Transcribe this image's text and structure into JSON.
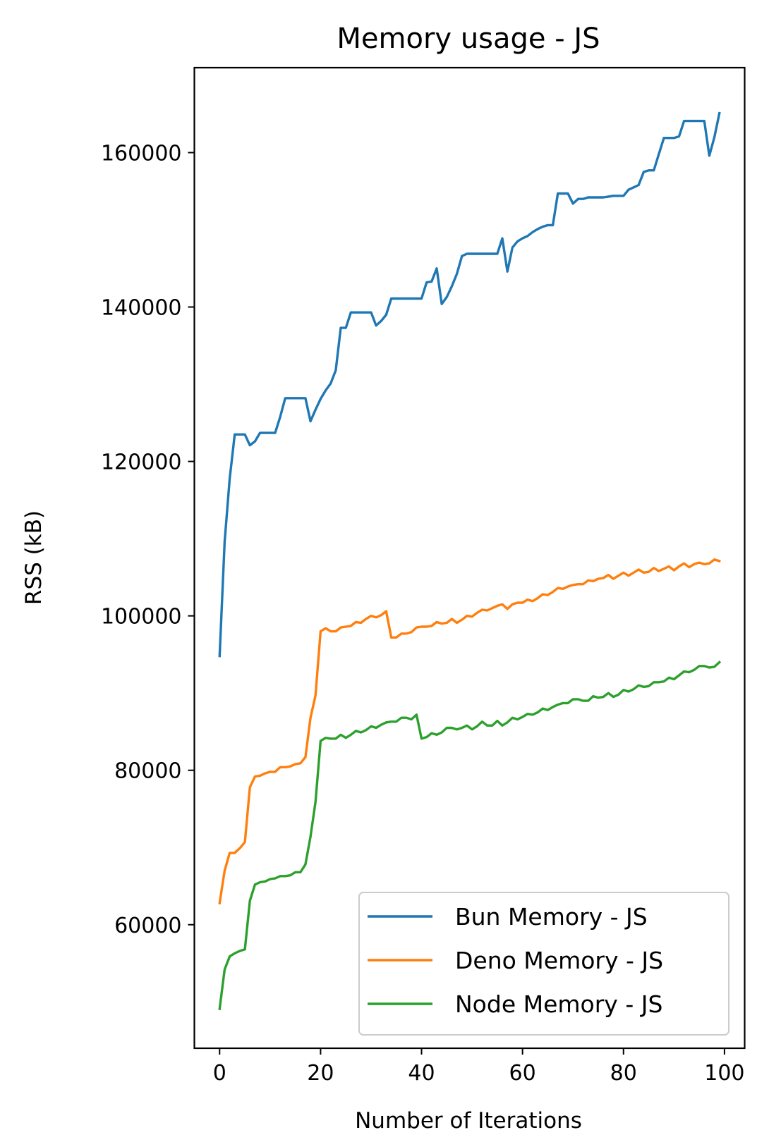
{
  "chart_data": {
    "type": "line",
    "title": "Memory usage - JS",
    "xlabel": "Number of Iterations",
    "ylabel": "RSS (kB)",
    "xlim": [
      -5,
      104
    ],
    "ylim": [
      44000,
      171000
    ],
    "xticks": [
      0,
      20,
      40,
      60,
      80,
      100
    ],
    "yticks": [
      60000,
      80000,
      100000,
      120000,
      140000,
      160000
    ],
    "grid": false,
    "legend_position": "lower right",
    "series": [
      {
        "name": "Bun Memory - JS",
        "color": "#1f77b4",
        "x": [
          0,
          1,
          2,
          3,
          4,
          5,
          6,
          7,
          8,
          9,
          10,
          11,
          12,
          13,
          14,
          15,
          16,
          17,
          18,
          19,
          20,
          21,
          22,
          23,
          24,
          25,
          26,
          27,
          28,
          29,
          30,
          31,
          32,
          33,
          34,
          35,
          36,
          37,
          38,
          39,
          40,
          41,
          42,
          43,
          44,
          45,
          46,
          47,
          48,
          49,
          50,
          51,
          52,
          53,
          54,
          55,
          56,
          57,
          58,
          59,
          60,
          61,
          62,
          63,
          64,
          65,
          66,
          67,
          68,
          69,
          70,
          71,
          72,
          73,
          74,
          75,
          76,
          77,
          78,
          79,
          80,
          81,
          82,
          83,
          84,
          85,
          86,
          87,
          88,
          89,
          90,
          91,
          92,
          93,
          94,
          95,
          96,
          97,
          98,
          99
        ],
        "values": [
          94800,
          109600,
          117800,
          123500,
          123500,
          123500,
          122100,
          122600,
          123700,
          123700,
          123700,
          123700,
          125800,
          128200,
          128200,
          128200,
          128200,
          128200,
          125200,
          126700,
          128100,
          129200,
          130100,
          131800,
          137300,
          137300,
          139300,
          139300,
          139300,
          139300,
          139300,
          137600,
          138200,
          139000,
          141100,
          141100,
          141100,
          141100,
          141100,
          141100,
          141100,
          143200,
          143300,
          145000,
          140400,
          141300,
          142700,
          144300,
          146600,
          146900,
          146900,
          146900,
          146900,
          146900,
          146900,
          146900,
          148900,
          144600,
          147700,
          148500,
          148900,
          149200,
          149700,
          150100,
          150400,
          150600,
          150600,
          154700,
          154700,
          154700,
          153400,
          154000,
          154000,
          154200,
          154200,
          154200,
          154200,
          154300,
          154400,
          154400,
          154400,
          155200,
          155500,
          155800,
          157500,
          157700,
          157700,
          159800,
          161900,
          161900,
          161900,
          162100,
          164100,
          164100,
          164100,
          164100,
          164100,
          159600,
          162000,
          165100
        ]
      },
      {
        "name": "Deno Memory - JS",
        "color": "#ff7f0e",
        "x": [
          0,
          1,
          2,
          3,
          4,
          5,
          6,
          7,
          8,
          9,
          10,
          11,
          12,
          13,
          14,
          15,
          16,
          17,
          18,
          19,
          20,
          21,
          22,
          23,
          24,
          25,
          26,
          27,
          28,
          29,
          30,
          31,
          32,
          33,
          34,
          35,
          36,
          37,
          38,
          39,
          40,
          41,
          42,
          43,
          44,
          45,
          46,
          47,
          48,
          49,
          50,
          51,
          52,
          53,
          54,
          55,
          56,
          57,
          58,
          59,
          60,
          61,
          62,
          63,
          64,
          65,
          66,
          67,
          68,
          69,
          70,
          71,
          72,
          73,
          74,
          75,
          76,
          77,
          78,
          79,
          80,
          81,
          82,
          83,
          84,
          85,
          86,
          87,
          88,
          89,
          90,
          91,
          92,
          93,
          94,
          95,
          96,
          97,
          98,
          99
        ],
        "values": [
          62800,
          67000,
          69300,
          69300,
          69900,
          70700,
          77800,
          79200,
          79300,
          79600,
          79800,
          79800,
          80400,
          80400,
          80500,
          80800,
          80900,
          81700,
          86800,
          89700,
          98000,
          98400,
          98000,
          98000,
          98500,
          98600,
          98700,
          99200,
          99100,
          99600,
          100000,
          99800,
          100100,
          100600,
          97200,
          97200,
          97700,
          97700,
          97900,
          98500,
          98600,
          98600,
          98700,
          99200,
          99000,
          99100,
          99600,
          99100,
          99500,
          100000,
          99900,
          100400,
          100800,
          100700,
          101000,
          101300,
          101500,
          100900,
          101500,
          101700,
          101700,
          102100,
          101900,
          102300,
          102800,
          102700,
          103100,
          103600,
          103500,
          103800,
          104000,
          104100,
          104100,
          104600,
          104500,
          104800,
          104900,
          105300,
          104800,
          105200,
          105600,
          105200,
          105600,
          106000,
          105600,
          105700,
          106200,
          105800,
          106100,
          106400,
          105900,
          106400,
          106800,
          106300,
          106700,
          106900,
          106700,
          106800,
          107300,
          107100
        ]
      },
      {
        "name": "Node Memory - JS",
        "color": "#2ca02c",
        "x": [
          0,
          1,
          2,
          3,
          4,
          5,
          6,
          7,
          8,
          9,
          10,
          11,
          12,
          13,
          14,
          15,
          16,
          17,
          18,
          19,
          20,
          21,
          22,
          23,
          24,
          25,
          26,
          27,
          28,
          29,
          30,
          31,
          32,
          33,
          34,
          35,
          36,
          37,
          38,
          39,
          40,
          41,
          42,
          43,
          44,
          45,
          46,
          47,
          48,
          49,
          50,
          51,
          52,
          53,
          54,
          55,
          56,
          57,
          58,
          59,
          60,
          61,
          62,
          63,
          64,
          65,
          66,
          67,
          68,
          69,
          70,
          71,
          72,
          73,
          74,
          75,
          76,
          77,
          78,
          79,
          80,
          81,
          82,
          83,
          84,
          85,
          86,
          87,
          88,
          89,
          90,
          91,
          92,
          93,
          94,
          95,
          96,
          97,
          98,
          99
        ],
        "values": [
          49100,
          54200,
          55900,
          56300,
          56600,
          56800,
          63100,
          65200,
          65500,
          65600,
          65900,
          66000,
          66300,
          66300,
          66400,
          66800,
          66800,
          67800,
          71400,
          75900,
          83800,
          84200,
          84100,
          84100,
          84600,
          84200,
          84600,
          85100,
          84900,
          85200,
          85700,
          85500,
          85900,
          86200,
          86300,
          86300,
          86800,
          86800,
          86600,
          87200,
          84100,
          84300,
          84800,
          84600,
          84900,
          85500,
          85500,
          85300,
          85500,
          85800,
          85300,
          85700,
          86300,
          85800,
          85800,
          86400,
          85800,
          86200,
          86800,
          86600,
          86900,
          87300,
          87200,
          87500,
          88000,
          87800,
          88200,
          88500,
          88700,
          88700,
          89200,
          89200,
          89000,
          89000,
          89600,
          89400,
          89500,
          90000,
          89500,
          89800,
          90400,
          90200,
          90500,
          91000,
          90800,
          90900,
          91400,
          91400,
          91500,
          92000,
          91800,
          92300,
          92800,
          92700,
          93000,
          93500,
          93500,
          93300,
          93400,
          94000
        ]
      }
    ]
  }
}
